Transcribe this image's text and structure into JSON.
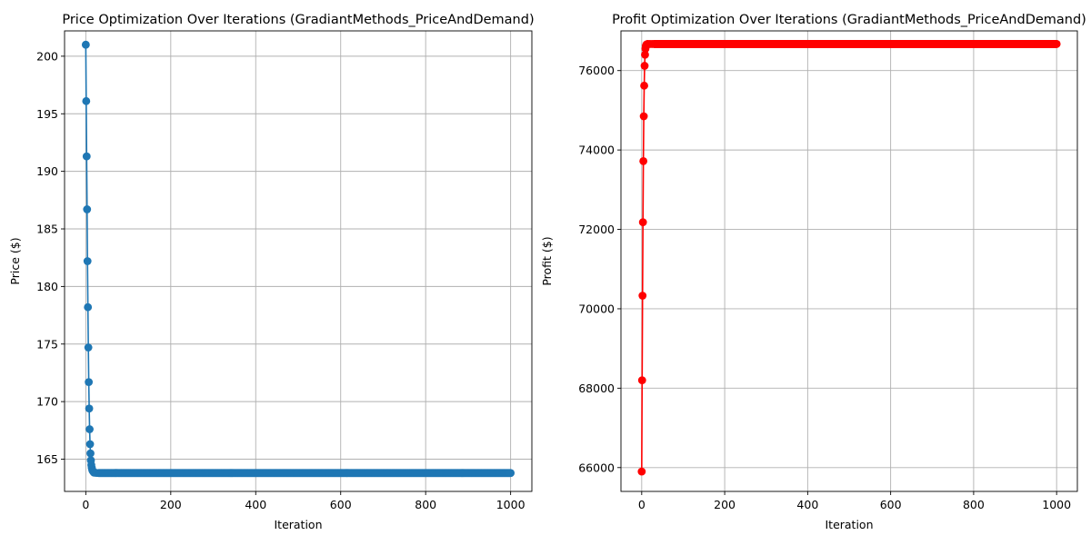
{
  "chart_data": [
    {
      "type": "line",
      "title": "Price Optimization Over Iterations (GradiantMethods_PriceAndDemand)",
      "xlabel": "Iteration",
      "ylabel": "Price ($)",
      "xlim": [
        -50,
        1050
      ],
      "ylim": [
        162.2,
        202.2
      ],
      "xticks": [
        0,
        200,
        400,
        600,
        800,
        1000
      ],
      "yticks": [
        165,
        170,
        175,
        180,
        185,
        190,
        195,
        200
      ],
      "grid": true,
      "color": "#1f77b4",
      "marker": "circle",
      "series": [
        {
          "x": [
            0,
            1,
            2,
            3,
            4,
            5,
            6,
            7,
            8,
            9,
            10,
            11,
            12,
            13,
            14,
            15,
            16,
            17,
            18,
            19,
            20,
            25,
            30
          ],
          "values": [
            201.0,
            196.1,
            191.3,
            186.7,
            182.2,
            178.2,
            174.7,
            171.7,
            169.4,
            167.6,
            166.3,
            165.5,
            164.9,
            164.5,
            164.25,
            164.1,
            164.0,
            163.95,
            163.9,
            163.85,
            163.83,
            163.81,
            163.8
          ]
        }
      ],
      "plateau": {
        "from": 30,
        "to": 1000,
        "value": 163.8
      }
    },
    {
      "type": "line",
      "title": "Profit Optimization Over Iterations (GradiantMethods_PriceAndDemand)",
      "xlabel": "Iteration",
      "ylabel": "Profit ($)",
      "xlim": [
        -50,
        1050
      ],
      "ylim": [
        65400,
        77000
      ],
      "xticks": [
        0,
        200,
        400,
        600,
        800,
        1000
      ],
      "yticks": [
        66000,
        68000,
        70000,
        72000,
        74000,
        76000
      ],
      "grid": true,
      "color": "#ff0000",
      "marker": "circle",
      "series": [
        {
          "x": [
            0,
            1,
            2,
            3,
            4,
            5,
            6,
            7,
            8,
            9,
            10,
            11,
            12,
            13,
            14,
            15,
            20,
            25,
            30
          ],
          "values": [
            65900,
            68200,
            70330,
            72180,
            73720,
            74850,
            75620,
            76120,
            76400,
            76550,
            76620,
            76650,
            76660,
            76665,
            76668,
            76670,
            76670,
            76670,
            76670
          ]
        }
      ],
      "plateau": {
        "from": 30,
        "to": 1000,
        "value": 76670
      }
    }
  ]
}
